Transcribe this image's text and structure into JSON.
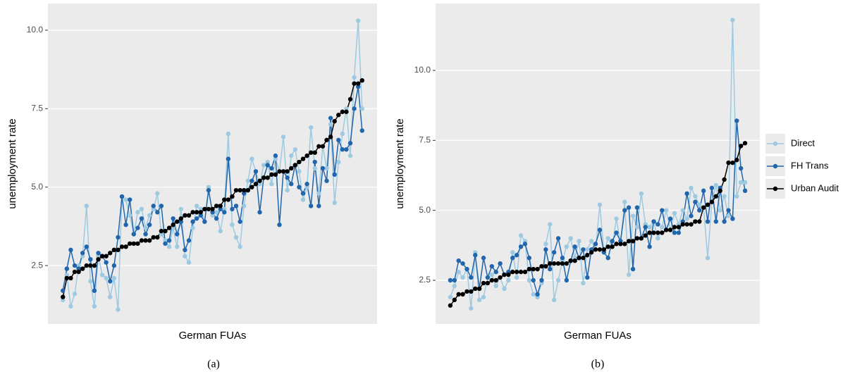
{
  "chart_data": [
    {
      "type": "line",
      "caption": "(a)",
      "x_label": "German FUAs",
      "y_label": "unemployment rate",
      "x": [
        1,
        2,
        3,
        4,
        5,
        6,
        7,
        8,
        9,
        10,
        11,
        12,
        13,
        14,
        15,
        16,
        17,
        18,
        19,
        20,
        21,
        22,
        23,
        24,
        25,
        26,
        27,
        28,
        29,
        30,
        31,
        32,
        33,
        34,
        35,
        36,
        37,
        38,
        39,
        40,
        41,
        42,
        43,
        44,
        45,
        46,
        47,
        48,
        49,
        50,
        51,
        52,
        53,
        54,
        55,
        56,
        57,
        58,
        59,
        60,
        61,
        62,
        63,
        64,
        65,
        66,
        67,
        68,
        69,
        70,
        71,
        72,
        73,
        74,
        75,
        76,
        77
      ],
      "xlim": [
        -2.8,
        80.8
      ],
      "ylim": [
        0.64,
        10.85
      ],
      "yticks": [
        2.5,
        {
          "value": 5,
          "label": "5.0"
        },
        7.5,
        {
          "value": 10,
          "label": "10.0"
        }
      ],
      "grid": true,
      "series": [
        {
          "color": "#9ecae1",
          "values": [
            1.4,
            2.2,
            1.2,
            1.6,
            2.5,
            2.8,
            4.4,
            2.0,
            1.2,
            2.8,
            2.2,
            2.1,
            1.5,
            2.1,
            1.1,
            4.7,
            4.6,
            4.1,
            3.5,
            4.2,
            4.3,
            3.7,
            4.1,
            4.3,
            4.8,
            3.5,
            3.3,
            3.1,
            3.7,
            3.1,
            4.3,
            2.8,
            2.6,
            3.7,
            4.4,
            4.3,
            3.9,
            5.0,
            4.1,
            4.2,
            3.6,
            4.3,
            6.7,
            3.8,
            3.4,
            3.1,
            4.4,
            5.2,
            5.9,
            5.5,
            5.1,
            5.7,
            5.8,
            5.1,
            5.9,
            5.5,
            6.6,
            4.9,
            6.0,
            6.2,
            5.5,
            4.6,
            5.0,
            6.9,
            5.6,
            4.8,
            6.3,
            5.6,
            7.0,
            4.5,
            5.8,
            6.7,
            7.5,
            6.0,
            8.5,
            10.3,
            7.5
          ]
        },
        {
          "color": "#2166ac",
          "values": [
            1.7,
            2.4,
            3.0,
            2.5,
            2.4,
            2.9,
            3.1,
            2.7,
            1.7,
            2.9,
            2.8,
            2.6,
            2.0,
            2.5,
            3.4,
            4.7,
            3.8,
            4.6,
            3.5,
            3.7,
            4.0,
            3.5,
            3.8,
            4.4,
            4.2,
            4.4,
            3.2,
            3.3,
            4.0,
            3.5,
            3.9,
            3.0,
            3.3,
            3.9,
            4.0,
            4.1,
            3.9,
            4.9,
            4.2,
            4.0,
            4.3,
            4.2,
            5.9,
            4.3,
            4.4,
            3.9,
            4.8,
            4.9,
            5.2,
            5.5,
            4.2,
            5.3,
            5.7,
            5.6,
            6.0,
            3.8,
            5.5,
            5.3,
            5.1,
            5.7,
            5.0,
            4.8,
            5.1,
            4.4,
            5.8,
            4.4,
            5.6,
            5.2,
            7.2,
            5.4,
            6.5,
            6.2,
            6.2,
            6.4,
            7.5,
            8.2,
            6.8
          ]
        },
        {
          "color": "#000000",
          "values": [
            1.5,
            2.1,
            2.1,
            2.3,
            2.3,
            2.4,
            2.5,
            2.5,
            2.5,
            2.7,
            2.8,
            2.8,
            2.9,
            3.0,
            3.0,
            3.1,
            3.1,
            3.2,
            3.2,
            3.2,
            3.3,
            3.3,
            3.3,
            3.4,
            3.4,
            3.6,
            3.6,
            3.7,
            3.8,
            3.9,
            4.0,
            4.1,
            4.1,
            4.2,
            4.2,
            4.2,
            4.3,
            4.3,
            4.3,
            4.4,
            4.4,
            4.6,
            4.6,
            4.7,
            4.9,
            4.9,
            4.9,
            4.9,
            5.0,
            5.1,
            5.2,
            5.3,
            5.3,
            5.4,
            5.4,
            5.5,
            5.5,
            5.5,
            5.6,
            5.7,
            5.8,
            5.9,
            6.0,
            6.1,
            6.1,
            6.3,
            6.3,
            6.5,
            6.6,
            7.1,
            7.3,
            7.4,
            7.4,
            7.8,
            8.3,
            8.3,
            8.4
          ]
        }
      ]
    },
    {
      "type": "line",
      "caption": "(b)",
      "x_label": "German FUAs",
      "y_label": "unemployment rate",
      "x": [
        1,
        2,
        3,
        4,
        5,
        6,
        7,
        8,
        9,
        10,
        11,
        12,
        13,
        14,
        15,
        16,
        17,
        18,
        19,
        20,
        21,
        22,
        23,
        24,
        25,
        26,
        27,
        28,
        29,
        30,
        31,
        32,
        33,
        34,
        35,
        36,
        37,
        38,
        39,
        40,
        41,
        42,
        43,
        44,
        45,
        46,
        47,
        48,
        49,
        50,
        51,
        52,
        53,
        54,
        55,
        56,
        57,
        58,
        59,
        60,
        61,
        62,
        63,
        64,
        65,
        66,
        67,
        68,
        69,
        70,
        71,
        72
      ],
      "xlim": [
        -2.55,
        75.55
      ],
      "ylim": [
        0.94,
        12.39
      ],
      "yticks": [
        2.5,
        {
          "value": 5,
          "label": "5.0"
        },
        7.5,
        {
          "value": 10,
          "label": "10.0"
        }
      ],
      "grid": true,
      "legend": "right",
      "series": [
        {
          "name": "Direct",
          "color": "#9ecae1",
          "values": [
            1.9,
            2.3,
            2.8,
            2.6,
            2.9,
            1.5,
            3.5,
            1.8,
            1.9,
            2.6,
            2.7,
            2.3,
            2.6,
            2.2,
            2.5,
            3.5,
            2.6,
            4.1,
            3.9,
            2.5,
            2.0,
            1.9,
            2.4,
            3.8,
            4.5,
            1.8,
            2.5,
            3.2,
            3.7,
            4.0,
            3.3,
            3.9,
            2.4,
            3.6,
            3.9,
            3.6,
            5.2,
            3.5,
            4.0,
            3.7,
            4.7,
            3.8,
            5.3,
            2.7,
            4.8,
            4.4,
            5.6,
            4.5,
            4.4,
            4.6,
            4.0,
            4.4,
            5.0,
            4.3,
            4.9,
            4.5,
            5.0,
            4.7,
            5.8,
            5.5,
            5.2,
            5.1,
            3.3,
            5.3,
            5.9,
            5.0,
            5.5,
            4.8,
            11.8,
            5.5,
            6.0,
            6.0
          ]
        },
        {
          "name": "FH Trans",
          "color": "#2166ac",
          "values": [
            2.5,
            2.5,
            3.2,
            3.1,
            2.9,
            2.6,
            3.4,
            2.2,
            3.3,
            2.6,
            3.0,
            2.8,
            3.1,
            2.7,
            2.8,
            3.3,
            3.4,
            3.7,
            3.8,
            3.3,
            2.5,
            2.0,
            2.5,
            3.6,
            2.9,
            3.5,
            4.0,
            3.3,
            2.5,
            3.2,
            3.7,
            3.3,
            3.6,
            2.6,
            3.6,
            3.8,
            4.3,
            3.5,
            3.3,
            3.9,
            4.2,
            3.9,
            5.0,
            5.1,
            2.9,
            5.1,
            4.0,
            4.4,
            3.7,
            4.6,
            4.5,
            5.0,
            4.3,
            4.7,
            4.2,
            4.2,
            4.6,
            5.6,
            4.8,
            5.3,
            5.0,
            5.7,
            4.6,
            5.8,
            4.6,
            5.8,
            4.6,
            5.0,
            4.7,
            8.2,
            6.5,
            5.7
          ]
        },
        {
          "name": "Urban Audit",
          "color": "#000000",
          "values": [
            1.6,
            1.8,
            2.0,
            2.0,
            2.1,
            2.1,
            2.2,
            2.2,
            2.4,
            2.4,
            2.5,
            2.5,
            2.6,
            2.7,
            2.7,
            2.8,
            2.8,
            2.8,
            2.8,
            2.9,
            2.9,
            2.9,
            3.0,
            3.0,
            3.1,
            3.1,
            3.1,
            3.1,
            3.1,
            3.2,
            3.2,
            3.3,
            3.3,
            3.4,
            3.5,
            3.6,
            3.6,
            3.6,
            3.7,
            3.7,
            3.8,
            3.8,
            3.8,
            3.9,
            3.9,
            4.0,
            4.0,
            4.1,
            4.2,
            4.2,
            4.2,
            4.2,
            4.3,
            4.3,
            4.4,
            4.4,
            4.5,
            4.5,
            4.5,
            4.6,
            4.6,
            5.1,
            5.2,
            5.3,
            5.5,
            5.7,
            6.1,
            6.7,
            6.7,
            6.8,
            7.3,
            7.4
          ]
        }
      ]
    }
  ]
}
